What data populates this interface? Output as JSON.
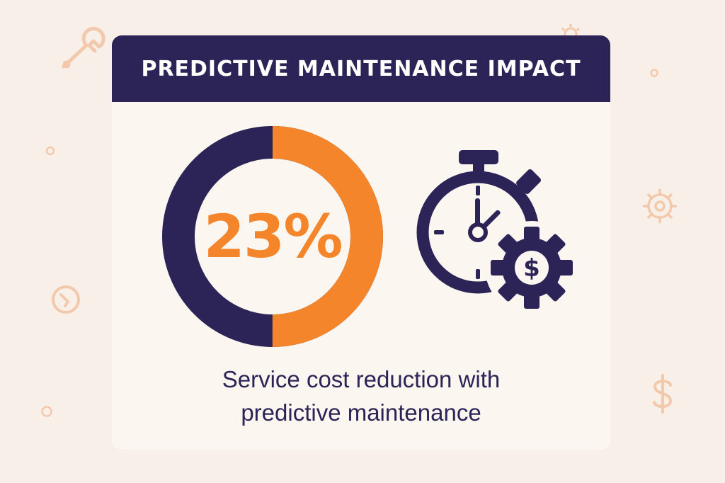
{
  "header": {
    "title": "PREDICTIVE MAINTENANCE IMPACT"
  },
  "metric": {
    "value": "23%",
    "fraction": 0.5
  },
  "caption": {
    "line1": "Service cost reduction with",
    "line2": "predictive maintenance"
  },
  "colors": {
    "navy": "#2c2457",
    "orange": "#f5852a",
    "background": "#f8f0e8",
    "card": "#fcf6f0",
    "decor": "#f2c9ad"
  },
  "icons": {
    "main": "stopwatch-dollar-gear-icon",
    "decorations": [
      "wrench-icon",
      "gear-icon",
      "dollar-icon",
      "ring-icon"
    ]
  }
}
